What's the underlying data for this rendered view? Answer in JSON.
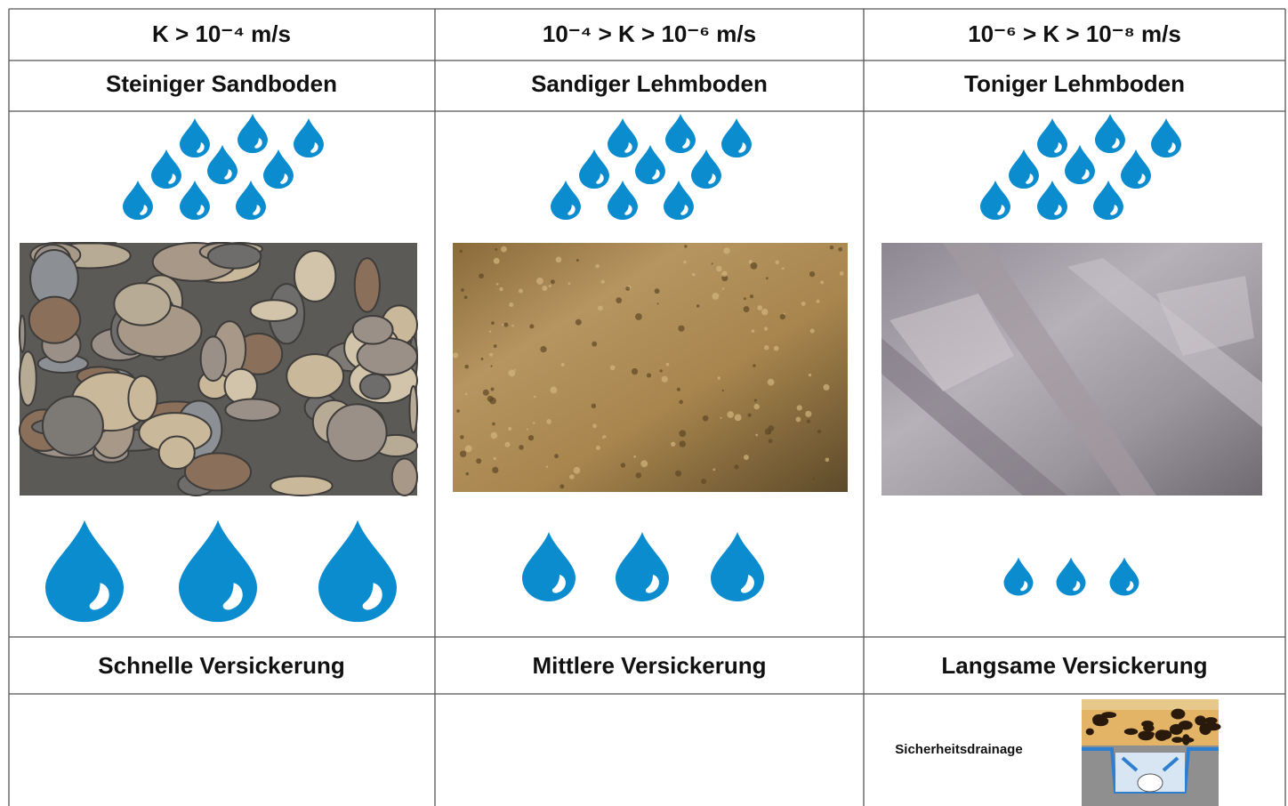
{
  "table": {
    "rows": [
      [
        "K > 10⁻⁴ m/s",
        "10⁻⁴ > K > 10⁻⁶ m/s",
        "10⁻⁶ > K > 10⁻⁸ m/s"
      ],
      [
        "Steiniger Sandboden",
        "Sandiger Lehmboden",
        "Toniger Lehmboden"
      ],
      [
        "Schnelle Versickerung",
        "Mittlere Versickerung",
        "Langsame Versickerung"
      ]
    ],
    "drainage_label": "Sicherheitsdrainage"
  }
}
